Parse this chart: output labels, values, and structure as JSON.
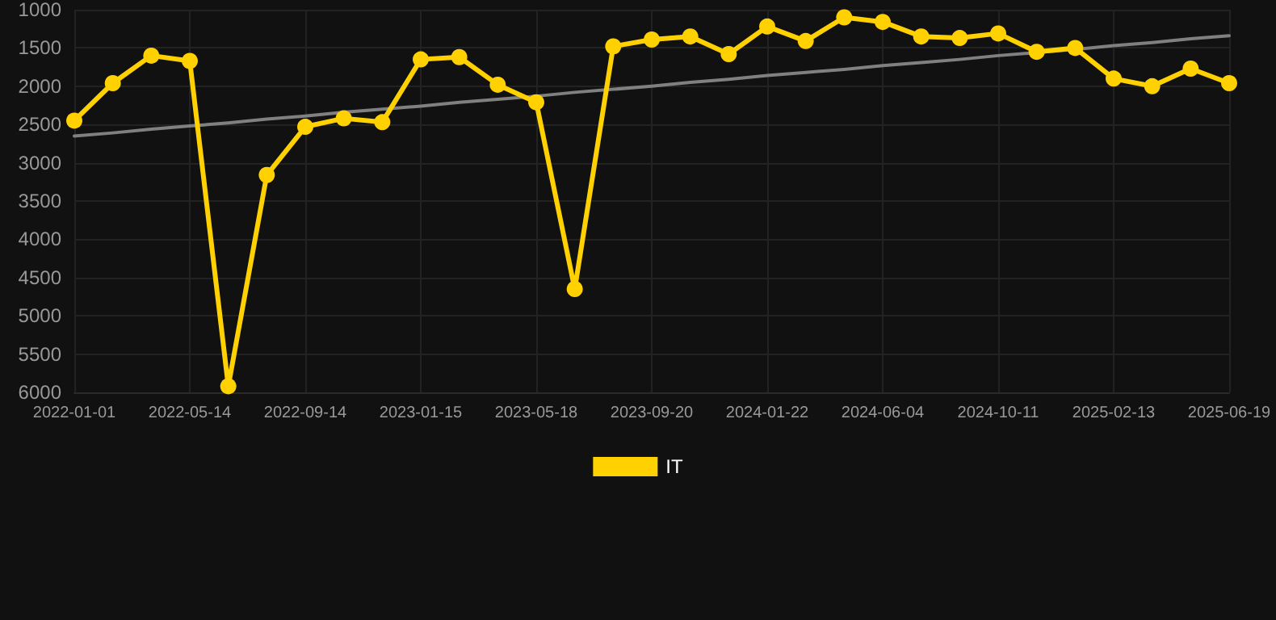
{
  "chart_data": {
    "type": "line",
    "categories": [
      "2022-01-01",
      null,
      null,
      "2022-05-14",
      null,
      null,
      "2022-09-14",
      null,
      null,
      "2023-01-15",
      null,
      null,
      "2023-05-18",
      null,
      null,
      "2023-09-20",
      null,
      null,
      "2024-01-22",
      null,
      null,
      "2024-06-04",
      null,
      null,
      "2024-10-11",
      null,
      null,
      "2025-02-13",
      null,
      null,
      "2025-06-19"
    ],
    "series": [
      {
        "name": "IT",
        "color": "#ffd100",
        "marker": "circle",
        "values": [
          2450,
          1960,
          1600,
          1670,
          5920,
          3160,
          2530,
          2420,
          2470,
          1650,
          1620,
          1980,
          2210,
          4650,
          1480,
          1390,
          1350,
          1580,
          1220,
          1410,
          1100,
          1160,
          1350,
          1370,
          1310,
          1550,
          1500,
          1900,
          2000,
          1770,
          1960
        ]
      },
      {
        "color": "#808080",
        "marker": "none",
        "values": [
          2650,
          2610,
          2560,
          2520,
          2480,
          2430,
          2390,
          2340,
          2300,
          2260,
          2210,
          2170,
          2130,
          2080,
          2040,
          2000,
          1950,
          1910,
          1860,
          1820,
          1780,
          1730,
          1690,
          1650,
          1600,
          1560,
          1520,
          1470,
          1430,
          1380,
          1340
        ]
      }
    ],
    "ylim": [
      6000,
      1000
    ],
    "yticks": [
      1000,
      1500,
      2000,
      2500,
      3000,
      3500,
      4000,
      4500,
      5000,
      5500,
      6000
    ],
    "grid": true,
    "legend": "bottom",
    "line_style": "solid"
  }
}
